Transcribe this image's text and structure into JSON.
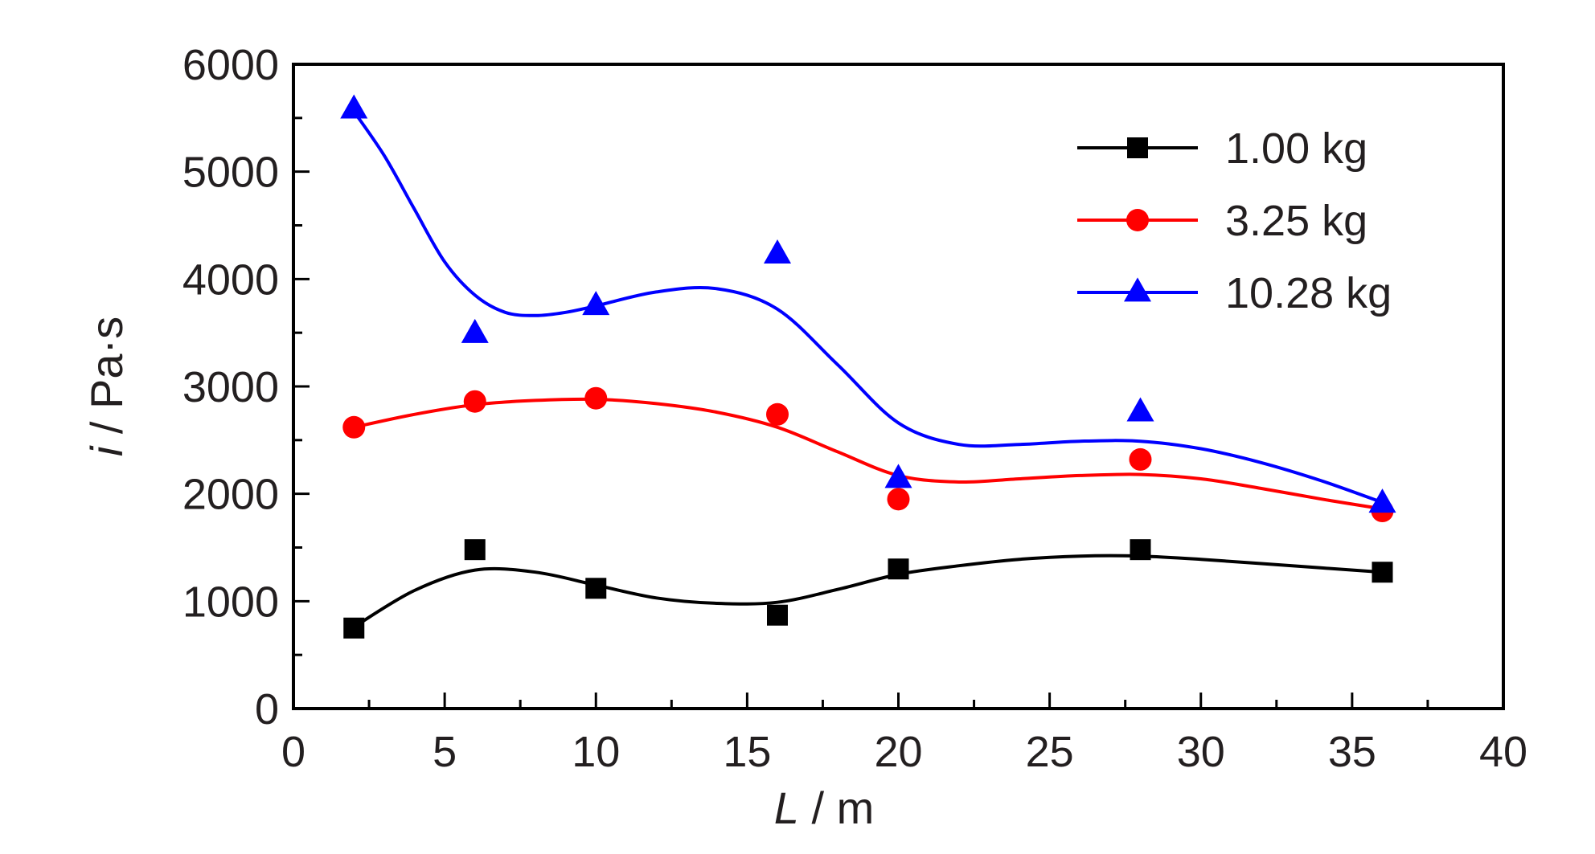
{
  "chart_data": {
    "type": "line",
    "xlabel_var": "L",
    "xlabel_unit": " / m",
    "ylabel_var": "i",
    "ylabel_unit": " / Pa·s",
    "xlim": [
      0,
      40
    ],
    "ylim": [
      0,
      6000
    ],
    "xticks": [
      0,
      5,
      10,
      15,
      20,
      25,
      30,
      35,
      40
    ],
    "yticks": [
      0,
      1000,
      2000,
      3000,
      4000,
      5000,
      6000
    ],
    "grid": false,
    "legend_position": "top-right",
    "x": [
      2,
      6,
      10,
      16,
      20,
      28,
      36
    ],
    "series": [
      {
        "name": "1.00 kg",
        "marker": "square",
        "color": "#000000",
        "points": [
          750,
          1480,
          1120,
          870,
          1300,
          1480,
          1270
        ],
        "curve_x": [
          2,
          4,
          6,
          8,
          10,
          12,
          14,
          16,
          18,
          20,
          22,
          24,
          26,
          28,
          30,
          32,
          34,
          36
        ],
        "curve_y": [
          760,
          1100,
          1290,
          1270,
          1150,
          1030,
          980,
          990,
          1110,
          1250,
          1330,
          1390,
          1420,
          1420,
          1390,
          1350,
          1310,
          1270
        ]
      },
      {
        "name": "3.25 kg",
        "marker": "circle",
        "color": "#ff0000",
        "points": [
          2620,
          2860,
          2890,
          2740,
          1950,
          2320,
          1840
        ],
        "curve_x": [
          2,
          4,
          6,
          8,
          10,
          12,
          14,
          16,
          18,
          20,
          22,
          24,
          26,
          28,
          30,
          32,
          34,
          36
        ],
        "curve_y": [
          2620,
          2740,
          2830,
          2870,
          2880,
          2840,
          2760,
          2620,
          2390,
          2170,
          2110,
          2140,
          2170,
          2180,
          2140,
          2050,
          1950,
          1860
        ]
      },
      {
        "name": "10.28 kg",
        "marker": "triangle",
        "color": "#0000ff",
        "points": [
          5580,
          3490,
          3750,
          4230,
          2140,
          2760,
          1910
        ],
        "curve_x": [
          2,
          3,
          4,
          5,
          6,
          7,
          8,
          9,
          10,
          12,
          14,
          16,
          18,
          20,
          22,
          24,
          26,
          28,
          30,
          32,
          34,
          36
        ],
        "curve_y": [
          5560,
          5150,
          4650,
          4160,
          3850,
          3690,
          3660,
          3690,
          3750,
          3880,
          3910,
          3720,
          3200,
          2660,
          2460,
          2460,
          2490,
          2490,
          2420,
          2290,
          2120,
          1920
        ]
      }
    ]
  }
}
